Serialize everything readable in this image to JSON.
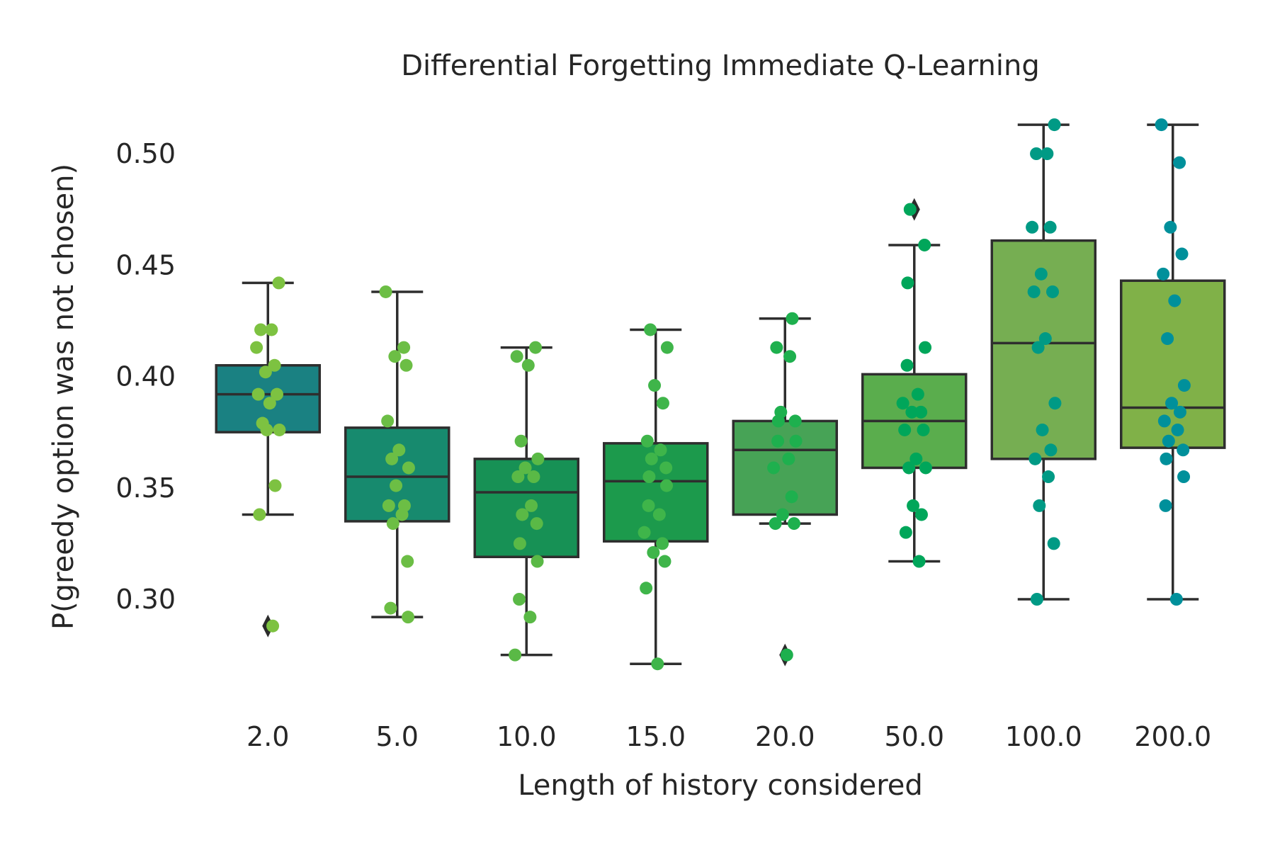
{
  "chart_data": {
    "type": "box",
    "title": "Differential Forgetting Immediate Q-Learning",
    "xlabel": "Length of history considered",
    "ylabel": "P(greedy option was not chosen)",
    "categories": [
      "2.0",
      "5.0",
      "10.0",
      "15.0",
      "20.0",
      "50.0",
      "100.0",
      "200.0"
    ],
    "ylim": [
      0.25,
      0.52
    ],
    "yticks": [
      0.3,
      0.35,
      0.4,
      0.45,
      0.5
    ],
    "ytick_labels": [
      "0.30",
      "0.35",
      "0.40",
      "0.45",
      "0.50"
    ],
    "grid": false,
    "box_colors": [
      "#1a8182",
      "#178a6e",
      "#179155",
      "#1c9a4c",
      "#47a356",
      "#5aad4d",
      "#76ae52",
      "#80b148"
    ],
    "point_colors": [
      "#7dc241",
      "#6cbe45",
      "#5ab946",
      "#3fb54a",
      "#1eb04e",
      "#00a65a",
      "#009a85",
      "#00909b"
    ],
    "outlier_color": "#2b2b2b",
    "boxes": [
      {
        "category": "2.0",
        "whislo": 0.338,
        "q1": 0.375,
        "med": 0.392,
        "q3": 0.405,
        "whishi": 0.442,
        "outliers": [
          0.288
        ],
        "points": [
          0.442,
          0.421,
          0.421,
          0.413,
          0.405,
          0.402,
          0.392,
          0.392,
          0.388,
          0.379,
          0.376,
          0.376,
          0.351,
          0.338,
          0.288
        ]
      },
      {
        "category": "5.0",
        "whislo": 0.292,
        "q1": 0.335,
        "med": 0.355,
        "q3": 0.377,
        "whishi": 0.438,
        "outliers": [],
        "points": [
          0.438,
          0.413,
          0.409,
          0.405,
          0.38,
          0.367,
          0.363,
          0.359,
          0.351,
          0.342,
          0.342,
          0.338,
          0.334,
          0.317,
          0.296,
          0.292
        ]
      },
      {
        "category": "10.0",
        "whislo": 0.275,
        "q1": 0.319,
        "med": 0.348,
        "q3": 0.363,
        "whishi": 0.413,
        "outliers": [],
        "points": [
          0.413,
          0.409,
          0.405,
          0.371,
          0.363,
          0.359,
          0.355,
          0.355,
          0.342,
          0.338,
          0.334,
          0.325,
          0.317,
          0.3,
          0.292,
          0.275
        ]
      },
      {
        "category": "15.0",
        "whislo": 0.271,
        "q1": 0.326,
        "med": 0.353,
        "q3": 0.37,
        "whishi": 0.421,
        "outliers": [],
        "points": [
          0.421,
          0.413,
          0.396,
          0.388,
          0.371,
          0.367,
          0.363,
          0.359,
          0.355,
          0.351,
          0.342,
          0.338,
          0.33,
          0.325,
          0.321,
          0.317,
          0.305,
          0.271
        ]
      },
      {
        "category": "20.0",
        "whislo": 0.334,
        "q1": 0.338,
        "med": 0.367,
        "q3": 0.38,
        "whishi": 0.426,
        "outliers": [
          0.275
        ],
        "points": [
          0.426,
          0.413,
          0.409,
          0.384,
          0.38,
          0.38,
          0.371,
          0.371,
          0.363,
          0.359,
          0.346,
          0.338,
          0.334,
          0.334,
          0.275
        ]
      },
      {
        "category": "50.0",
        "whislo": 0.317,
        "q1": 0.359,
        "med": 0.38,
        "q3": 0.401,
        "whishi": 0.459,
        "outliers": [
          0.475
        ],
        "points": [
          0.475,
          0.459,
          0.442,
          0.413,
          0.405,
          0.392,
          0.388,
          0.384,
          0.384,
          0.376,
          0.376,
          0.363,
          0.359,
          0.359,
          0.342,
          0.338,
          0.33,
          0.317
        ]
      },
      {
        "category": "100.0",
        "whislo": 0.3,
        "q1": 0.363,
        "med": 0.415,
        "q3": 0.461,
        "whishi": 0.513,
        "outliers": [],
        "points": [
          0.513,
          0.5,
          0.5,
          0.467,
          0.467,
          0.446,
          0.438,
          0.438,
          0.417,
          0.413,
          0.388,
          0.376,
          0.367,
          0.363,
          0.355,
          0.342,
          0.325,
          0.3
        ]
      },
      {
        "category": "200.0",
        "whislo": 0.3,
        "q1": 0.368,
        "med": 0.386,
        "q3": 0.443,
        "whishi": 0.513,
        "outliers": [],
        "points": [
          0.513,
          0.496,
          0.467,
          0.455,
          0.446,
          0.434,
          0.417,
          0.396,
          0.388,
          0.384,
          0.38,
          0.376,
          0.371,
          0.367,
          0.363,
          0.355,
          0.342,
          0.3
        ]
      }
    ]
  }
}
